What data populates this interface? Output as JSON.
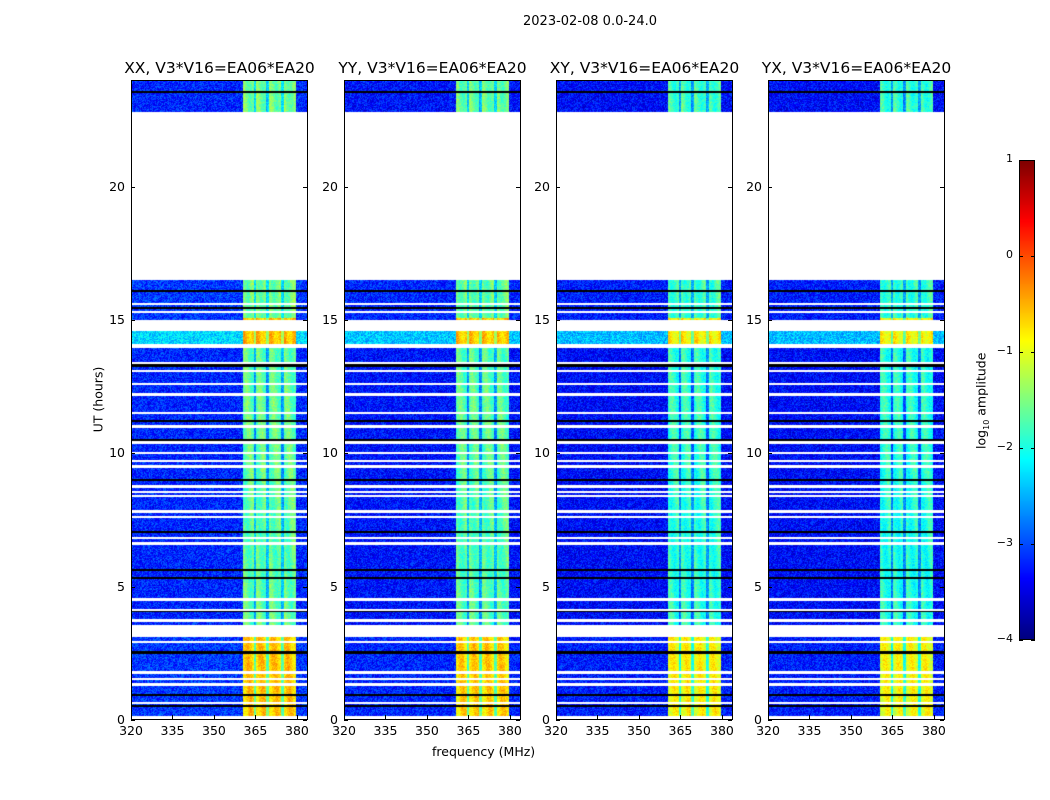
{
  "chart_data": {
    "type": "heatmap",
    "title": "2023-02-08 0.0-24.0",
    "xlabel": "frequency (MHz)",
    "ylabel": "UT (hours)",
    "xlim": [
      320,
      384
    ],
    "ylim": [
      0,
      24
    ],
    "xticks": [
      "320",
      "335",
      "350",
      "365",
      "380"
    ],
    "xtick_values": [
      320,
      335,
      350,
      365,
      380
    ],
    "yticks": [
      "0",
      "5",
      "10",
      "15",
      "20"
    ],
    "ytick_values": [
      0,
      5,
      10,
      15,
      20
    ],
    "panels": [
      {
        "title": "XX, V3*V16=EA06*EA20",
        "band_boost": 0.25,
        "bg_boost": 0.1
      },
      {
        "title": "YY, V3*V16=EA06*EA20",
        "band_boost": 0.2,
        "bg_boost": 0.0
      },
      {
        "title": "XY, V3*V16=EA06*EA20",
        "band_boost": 0.0,
        "bg_boost": -0.05
      },
      {
        "title": "YX, V3*V16=EA06*EA20",
        "band_boost": -0.05,
        "bg_boost": -0.05
      }
    ],
    "rfi_band_mhz": [
      360.5,
      380
    ],
    "rfi_subband_edges_mhz": [
      365,
      369.6,
      375
    ],
    "segments": [
      {
        "hours": [
          0,
          3.1
        ],
        "band_log10": -0.9,
        "bg_log10": -3.2
      },
      {
        "hours": [
          3.5,
          13.95
        ],
        "band_log10": -1.9,
        "bg_log10": -3.3
      },
      {
        "hours": [
          14.1,
          14.6
        ],
        "band_log10": -0.8,
        "bg_log10": -2.4
      },
      {
        "hours": [
          15.0,
          15.1
        ],
        "band_log10": -0.8,
        "bg_log10": -3.2
      },
      {
        "hours": [
          15.1,
          16.5
        ],
        "band_log10": -1.8,
        "bg_log10": -3.2
      },
      {
        "hours": [
          22.85,
          24
        ],
        "band_log10": -1.8,
        "bg_log10": -3.3
      }
    ],
    "missing_hours": [
      [
        16.5,
        22.85
      ],
      [
        14.6,
        15.0
      ],
      [
        13.95,
        14.1
      ],
      [
        3.1,
        3.55
      ]
    ],
    "flagged_thin_rows_hours": [
      0.05,
      0.6,
      1.3,
      1.5,
      1.75,
      2.9,
      3.7,
      4.1,
      4.5,
      6.6,
      6.8,
      7.6,
      7.8,
      8.4,
      8.55,
      8.75,
      9.5,
      9.7,
      10.0,
      10.4,
      11.0,
      11.5,
      12.2,
      12.6,
      13.1,
      13.4,
      15.3,
      15.6
    ],
    "zero_rows_hours": [
      0.5,
      0.9,
      2.5,
      4.05,
      5.3,
      5.6,
      7.05,
      9.0,
      10.5,
      11.2,
      13.3,
      15.45,
      16.1,
      23.6
    ],
    "colorbar": {
      "label": "log10 amplitude",
      "label_main": "log",
      "label_sub": "10",
      "label_rest": " amplitude",
      "colormap": "jet",
      "range": [
        -4,
        1
      ],
      "ticks": [
        "1",
        "0",
        "−1",
        "−2",
        "−3",
        "−4"
      ],
      "tick_values": [
        1,
        0,
        -1,
        -2,
        -3,
        -4
      ]
    }
  }
}
